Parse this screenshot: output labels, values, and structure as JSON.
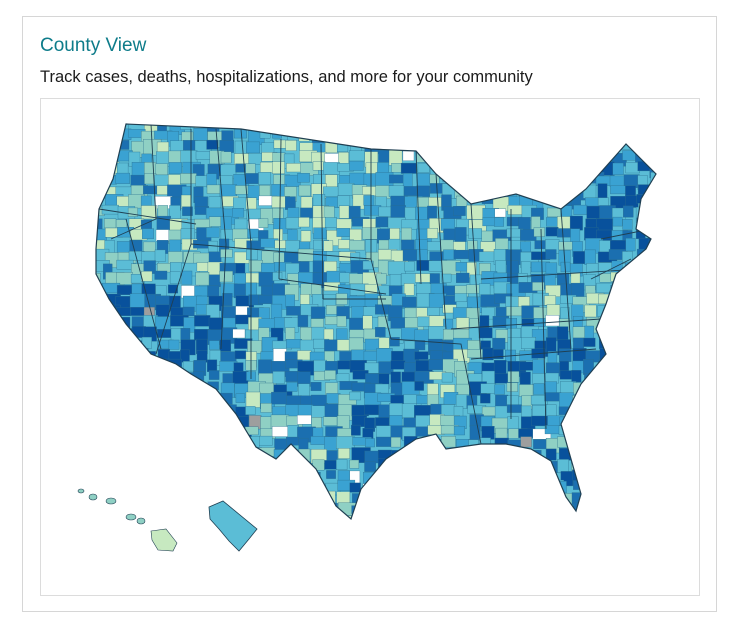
{
  "header": {
    "title": "County View",
    "subtitle": "Track cases, deaths, hospitalizations, and more for your community"
  },
  "map": {
    "region": "United States counties",
    "colors": {
      "level_1": "#c7e9c0",
      "level_2": "#8fd0c4",
      "level_3": "#5bbdd6",
      "level_4": "#3aa2d2",
      "level_5": "#1b6fb0",
      "level_6": "#08519c",
      "no_data": "#ffffff",
      "missing": "#9e9e9e",
      "county_border": "#2a6f8f",
      "state_border": "#1f3f52"
    }
  }
}
